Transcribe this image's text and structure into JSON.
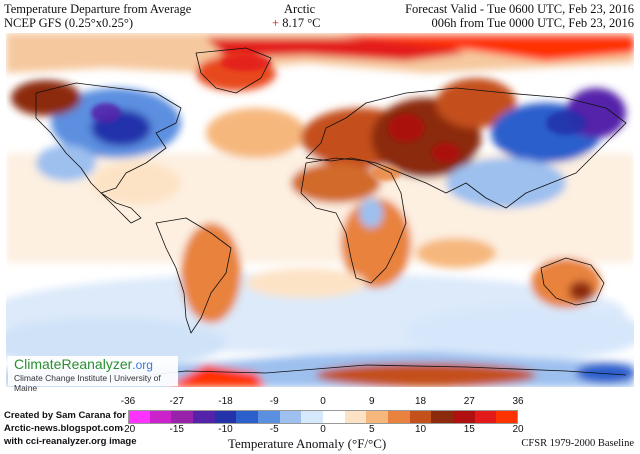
{
  "header": {
    "title": "Temperature Departure from Average",
    "model": "NCEP GFS (0.25°x0.25°)",
    "region": "Arctic",
    "region_value_sign": "+",
    "region_value": "8.17 °C",
    "forecast_valid": "Forecast Valid - Tue 0600 UTC, Feb 23, 2016",
    "forecast_from": "006h from Tue 0000 UTC, Feb 23, 2016"
  },
  "badge": {
    "name": "ClimateReanalyzer",
    "suffix": ".org",
    "institute": "Climate Change Institute | University of Maine"
  },
  "credit": {
    "line1": "Created by Sam Carana for",
    "line2": "Arctic-news.blogspot.com",
    "line3": "with cci-reanalyzer.org image"
  },
  "legend": {
    "title": "Temperature Anomaly (°F/°C)",
    "baseline": "CFSR 1979-2000 Baseline",
    "fahrenheit_ticks": [
      "-36",
      "-27",
      "-18",
      "-9",
      "0",
      "9",
      "18",
      "27",
      "36"
    ],
    "celsius_ticks": [
      "-20",
      "-15",
      "-10",
      "-5",
      "0",
      "5",
      "10",
      "15",
      "20"
    ],
    "colors": [
      "#ff33ff",
      "#cc22cc",
      "#9922aa",
      "#5522aa",
      "#2233aa",
      "#2a5fcc",
      "#5b8fe0",
      "#9dc0ef",
      "#d6e8fb",
      "#ffffff",
      "#fde3c6",
      "#f6b77d",
      "#e8823e",
      "#c4501c",
      "#8c2a0d",
      "#b01010",
      "#e31a1a",
      "#ff3300"
    ]
  }
}
